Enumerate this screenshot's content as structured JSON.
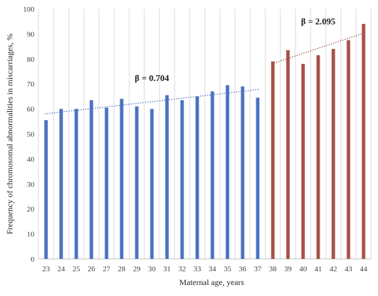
{
  "chart_data": {
    "type": "bar",
    "xlabel": "Maternal age, years",
    "ylabel": "Frequency of chromosomal abnormalities in miscarriages, %",
    "ylim": [
      0,
      100
    ],
    "yticks": [
      0,
      10,
      20,
      30,
      40,
      50,
      60,
      70,
      80,
      90,
      100
    ],
    "grid": "vertical",
    "categories": [
      "23",
      "24",
      "25",
      "26",
      "27",
      "28",
      "29",
      "30",
      "31",
      "32",
      "33",
      "34",
      "35",
      "36",
      "37",
      "38",
      "39",
      "40",
      "41",
      "42",
      "43",
      "44"
    ],
    "series": [
      {
        "color": "#4a72c0",
        "x": [
          "23",
          "24",
          "25",
          "26",
          "27",
          "28",
          "29",
          "30",
          "31",
          "32",
          "33",
          "34",
          "35",
          "36",
          "37"
        ],
        "values": [
          55.5,
          60,
          60,
          63.5,
          60.5,
          64,
          61,
          60,
          65.5,
          63.5,
          65,
          67,
          69.5,
          69,
          64.5
        ]
      },
      {
        "color": "#a5514a",
        "x": [
          "38",
          "39",
          "40",
          "41",
          "42",
          "43",
          "44"
        ],
        "values": [
          79,
          83.5,
          78,
          81.5,
          84,
          87.5,
          94
        ]
      }
    ],
    "trendlines": [
      {
        "label": "β = 0.704",
        "from": {
          "x": "23",
          "y": 58
        },
        "to": {
          "x": "37",
          "y": 67.8
        },
        "color": "#4a72c0",
        "style": "dotted"
      },
      {
        "label": "β = 2.095",
        "from": {
          "x": "38",
          "y": 78
        },
        "to": {
          "x": "44",
          "y": 90.5
        },
        "color": "#a5514a",
        "style": "dotted"
      }
    ]
  }
}
